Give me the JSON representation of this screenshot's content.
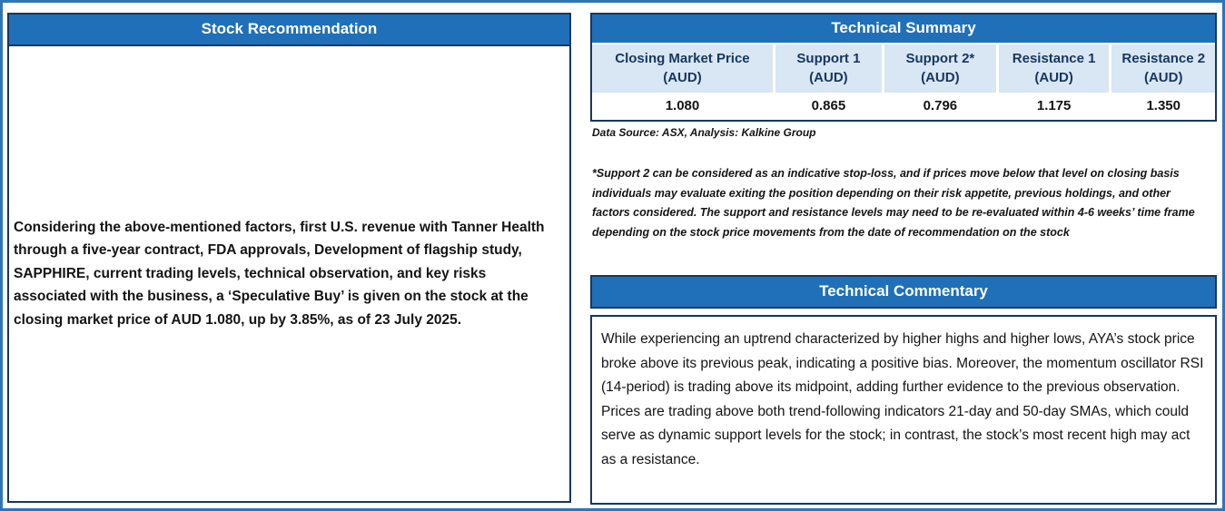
{
  "stock_recommendation": {
    "title": "Stock Recommendation",
    "body": "Considering the above-mentioned factors, first U.S. revenue with Tanner Health through a five-year contract, FDA approvals, Development of flagship study, SAPPHIRE, current trading levels, technical observation, and key risks associated with the business, a ‘Speculative Buy’ is given on the stock at the closing market price of AUD 1.080, up by 3.85%,  as of 23 July 2025."
  },
  "technical_summary": {
    "title": "Technical Summary",
    "columns": [
      {
        "header": "Closing Market Price\n(AUD)",
        "value": "1.080"
      },
      {
        "header": "Support 1\n(AUD)",
        "value": "0.865"
      },
      {
        "header": "Support 2*\n(AUD)",
        "value": "0.796"
      },
      {
        "header": "Resistance 1\n(AUD)",
        "value": "1.175"
      },
      {
        "header": "Resistance 2\n(AUD)",
        "value": "1.350"
      }
    ],
    "data_source": "Data Source: ASX, Analysis: Kalkine Group",
    "note": "*Support 2 can be considered as an indicative stop-loss, and if prices move below that level on closing basis individuals may evaluate exiting the position depending on their risk appetite, previous holdings, and other factors considered. The support and resistance levels may need to be re-evaluated within 4-6 weeks’ time frame depending on the stock price movements from the date of recommendation on the stock"
  },
  "technical_commentary": {
    "title": "Technical Commentary",
    "body": "While experiencing an uptrend characterized by higher highs and higher lows, AYA’s stock price broke above its previous peak, indicating a positive bias. Moreover, the momentum oscillator RSI (14-period) is trading above its midpoint, adding further evidence to the previous observation. Prices are trading above both trend-following indicators 21-day and 50-day SMAs, which could serve as dynamic support levels for the stock; in contrast, the stock’s most recent high may act as a resistance."
  },
  "colors": {
    "header_blue": "#1F70B8",
    "border_navy": "#17375E",
    "cell_light_blue": "#D9E6F4",
    "frame_blue": "#2E75B6"
  }
}
